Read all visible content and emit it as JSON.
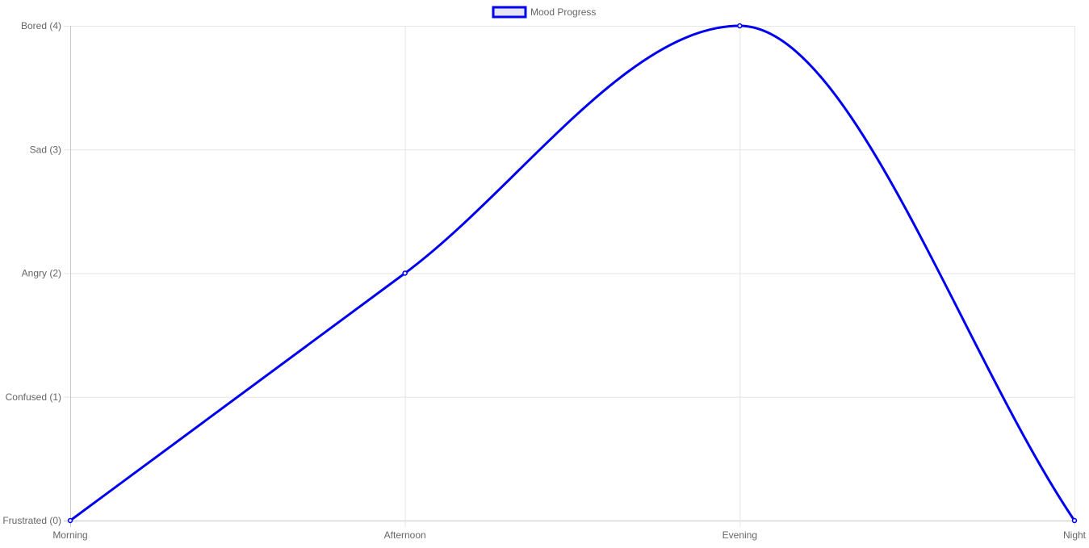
{
  "chart_data": {
    "type": "line",
    "categories": [
      "Morning",
      "Afternoon",
      "Evening",
      "Night"
    ],
    "series": [
      {
        "name": "Mood Progress",
        "values": [
          0,
          2,
          4,
          0
        ],
        "color": "#0000ee",
        "fill": "#e4e4f4"
      }
    ],
    "y_ticks": [
      {
        "value": 0,
        "label": "Frustrated (0)"
      },
      {
        "value": 1,
        "label": "Confused (1)"
      },
      {
        "value": 2,
        "label": "Angry (2)"
      },
      {
        "value": 3,
        "label": "Sad (3)"
      },
      {
        "value": 4,
        "label": "Bored (4)"
      }
    ],
    "ylim": [
      0,
      4
    ],
    "grid": true,
    "legend_position": "top-center",
    "curve": "smooth",
    "grid_color": "#e6e6e6",
    "axis_color": "#c8c8c8",
    "label_color": "#666666"
  }
}
